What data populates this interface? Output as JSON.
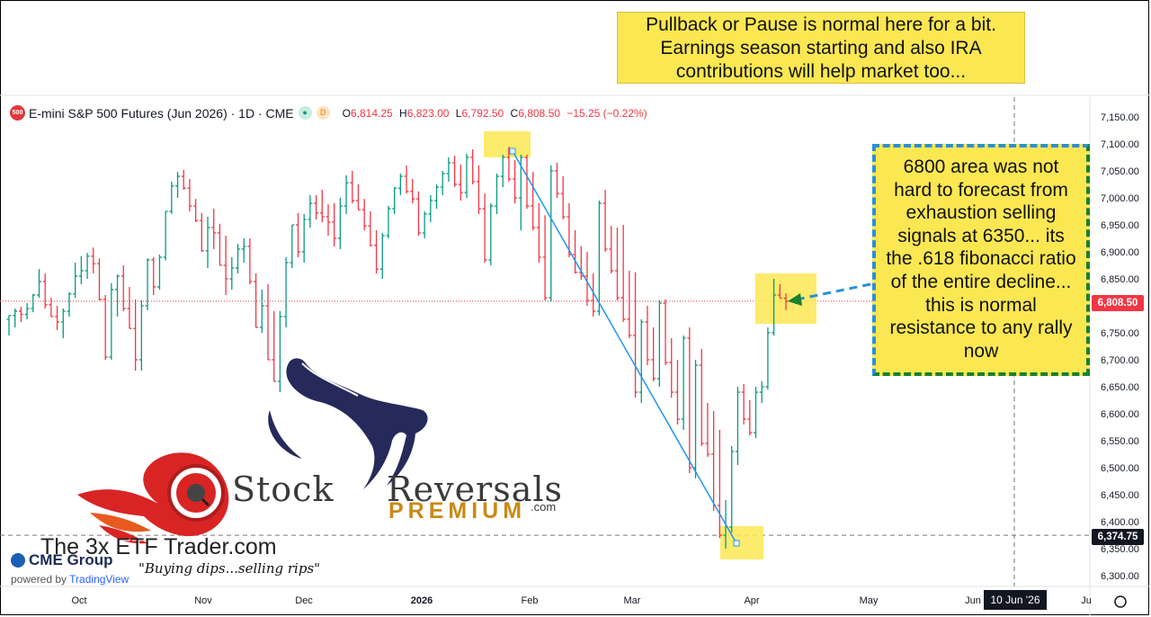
{
  "header": {
    "badge": "500",
    "symbol": "E-mini S&P 500 Futures (Jun 2026) · 1D · CME",
    "open_label": "O",
    "open": "6,814.25",
    "high_label": "H",
    "high": "6,823.00",
    "low_label": "L",
    "low": "6,792.50",
    "close_label": "C",
    "close": "6,808.50",
    "change": "−15.25 (−0.22%)"
  },
  "annotations": {
    "top_note": "Pullback or Pause is normal here for a bit. Earnings season starting and also IRA contributions will help market too...",
    "right_note": "6800 area was not hard to forecast from exhaustion selling signals at 6350... its the .618 fibonacci ratio of the entire decline... this is normal resistance to any rally now"
  },
  "price_tags": {
    "current": "6,808.50",
    "low_line": "6,374.75",
    "date_marker": "10 Jun '26"
  },
  "branding": {
    "logo_word1": "Stock",
    "logo_word2": "Reversals",
    "logo_sub": "PREMIUM",
    "logo_com": ".com",
    "trader": "The 3x ETF Trader.com",
    "slogan": "\"Buying dips...selling rips\"",
    "cme": "CME Group",
    "powered": "powered by",
    "tradingview": "TradingView"
  },
  "colors": {
    "up": "#089981",
    "down": "#f23645",
    "line": "#2196f3",
    "highlight": "#fbe752"
  },
  "chart_data": {
    "type": "ohlc",
    "y_axis_ticks": [
      "7,150.00",
      "7,100.00",
      "7,050.00",
      "7,000.00",
      "6,950.00",
      "6,900.00",
      "6,850.00",
      "6,800.00",
      "6,750.00",
      "6,700.00",
      "6,650.00",
      "6,600.00",
      "6,550.00",
      "6,500.00",
      "6,450.00",
      "6,400.00",
      "6,350.00",
      "6,300.00"
    ],
    "y_tick_values": [
      7150,
      7100,
      7050,
      7000,
      6950,
      6900,
      6850,
      6800,
      6750,
      6700,
      6650,
      6600,
      6550,
      6500,
      6450,
      6400,
      6350,
      6300
    ],
    "x_axis_labels": [
      "Oct",
      "Nov",
      "Dec",
      "2026",
      "Feb",
      "Mar",
      "Apr",
      "May",
      "Jun",
      "Ju"
    ],
    "ylim": [
      6280,
      7175
    ],
    "bars": [
      [
        6775,
        6770,
        6745
      ],
      [
        6782,
        6795,
        6760
      ],
      [
        6790,
        6798,
        6770
      ],
      [
        6784,
        6805,
        6775
      ],
      [
        6795,
        6822,
        6788
      ],
      [
        6820,
        6868,
        6815
      ],
      [
        6845,
        6860,
        6795
      ],
      [
        6802,
        6815,
        6780
      ],
      [
        6780,
        6800,
        6755
      ],
      [
        6770,
        6795,
        6740
      ],
      [
        6790,
        6825,
        6780
      ],
      [
        6822,
        6880,
        6815
      ],
      [
        6855,
        6892,
        6840
      ],
      [
        6865,
        6898,
        6850
      ],
      [
        6892,
        6908,
        6860
      ],
      [
        6878,
        6888,
        6810
      ],
      [
        6812,
        6820,
        6700
      ],
      [
        6705,
        6842,
        6700
      ],
      [
        6830,
        6858,
        6780
      ],
      [
        6855,
        6875,
        6790
      ],
      [
        6795,
        6835,
        6760
      ],
      [
        6758,
        6812,
        6680
      ],
      [
        6700,
        6810,
        6680
      ],
      [
        6800,
        6888,
        6792
      ],
      [
        6885,
        6890,
        6820
      ],
      [
        6835,
        6895,
        6830
      ],
      [
        6890,
        6965,
        6884
      ],
      [
        6975,
        7030,
        6970
      ],
      [
        7022,
        7048,
        7000
      ],
      [
        7040,
        7052,
        7015
      ],
      [
        7018,
        7035,
        6975
      ],
      [
        6985,
        6998,
        6955
      ],
      [
        6958,
        6972,
        6900
      ],
      [
        6902,
        6965,
        6870
      ],
      [
        6945,
        6980,
        6905
      ],
      [
        6935,
        6952,
        6880
      ],
      [
        6875,
        6930,
        6820
      ],
      [
        6850,
        6890,
        6830
      ],
      [
        6870,
        6915,
        6860
      ],
      [
        6905,
        6925,
        6880
      ],
      [
        6910,
        6925,
        6840
      ],
      [
        6845,
        6860,
        6760
      ],
      [
        6760,
        6830,
        6750
      ],
      [
        6800,
        6840,
        6700
      ],
      [
        6700,
        6790,
        6670
      ],
      [
        6660,
        6790,
        6640
      ],
      [
        6780,
        6890,
        6760
      ],
      [
        6880,
        6950,
        6870
      ],
      [
        6950,
        6972,
        6890
      ],
      [
        6900,
        6970,
        6880
      ],
      [
        6960,
        7005,
        6945
      ],
      [
        6990,
        7005,
        6960
      ],
      [
        6972,
        7015,
        6955
      ],
      [
        6965,
        6988,
        6930
      ],
      [
        6955,
        6990,
        6910
      ],
      [
        6925,
        7000,
        6905
      ],
      [
        6985,
        7042,
        6970
      ],
      [
        7028,
        7050,
        6990
      ],
      [
        6995,
        7025,
        6980
      ],
      [
        6978,
        6998,
        6940
      ],
      [
        6948,
        6975,
        6910
      ],
      [
        6912,
        6940,
        6860
      ],
      [
        6868,
        6935,
        6850
      ],
      [
        6930,
        6985,
        6925
      ],
      [
        6980,
        7020,
        6970
      ],
      [
        7018,
        7045,
        7005
      ],
      [
        7040,
        7060,
        7008
      ],
      [
        7012,
        7035,
        6990
      ],
      [
        6998,
        7012,
        6930
      ],
      [
        6935,
        6975,
        6925
      ],
      [
        6970,
        7005,
        6955
      ],
      [
        6995,
        7025,
        6980
      ],
      [
        7020,
        7050,
        7005
      ],
      [
        7045,
        7075,
        7030
      ],
      [
        7065,
        7078,
        7020
      ],
      [
        7025,
        7062,
        6995
      ],
      [
        7010,
        7082,
        7000
      ],
      [
        7075,
        7090,
        7025
      ],
      [
        7030,
        7060,
        6970
      ],
      [
        6980,
        7008,
        6880
      ],
      [
        6885,
        6990,
        6875
      ],
      [
        6985,
        7045,
        6970
      ],
      [
        7040,
        7080,
        7020
      ],
      [
        7075,
        7095,
        7030
      ],
      [
        7035,
        7070,
        6990
      ],
      [
        7000,
        7080,
        6940
      ],
      [
        7075,
        7080,
        6980
      ],
      [
        6985,
        7048,
        6940
      ],
      [
        6945,
        6990,
        6880
      ],
      [
        6890,
        6968,
        6810
      ],
      [
        6815,
        7060,
        6808
      ],
      [
        7050,
        7065,
        7000
      ],
      [
        7008,
        7040,
        6960
      ],
      [
        6965,
        6990,
        6890
      ],
      [
        6895,
        6940,
        6860
      ],
      [
        6862,
        6910,
        6848
      ],
      [
        6855,
        6900,
        6800
      ],
      [
        6810,
        6860,
        6780
      ],
      [
        6790,
        6995,
        6782
      ],
      [
        6990,
        7015,
        6900
      ],
      [
        6905,
        6948,
        6860
      ],
      [
        6865,
        6945,
        6810
      ],
      [
        6815,
        6950,
        6770
      ],
      [
        6775,
        6865,
        6740
      ],
      [
        6745,
        6862,
        6630
      ],
      [
        6640,
        6775,
        6620
      ],
      [
        6770,
        6800,
        6690
      ],
      [
        6700,
        6760,
        6660
      ],
      [
        6665,
        6810,
        6650
      ],
      [
        6805,
        6812,
        6690
      ],
      [
        6695,
        6740,
        6630
      ],
      [
        6640,
        6700,
        6580
      ],
      [
        6590,
        6745,
        6570
      ],
      [
        6740,
        6760,
        6490
      ],
      [
        6500,
        6700,
        6480
      ],
      [
        6690,
        6720,
        6540
      ],
      [
        6545,
        6620,
        6520
      ],
      [
        6525,
        6605,
        6420
      ],
      [
        6430,
        6570,
        6370
      ],
      [
        6375,
        6440,
        6350
      ],
      [
        6390,
        6540,
        6380
      ],
      [
        6530,
        6650,
        6505
      ],
      [
        6640,
        6655,
        6580
      ],
      [
        6590,
        6625,
        6560
      ],
      [
        6565,
        6650,
        6555
      ],
      [
        6640,
        6660,
        6620
      ],
      [
        6650,
        6760,
        6645
      ],
      [
        6750,
        6850,
        6745
      ],
      [
        6820,
        6840,
        6815
      ],
      [
        6814,
        6823,
        6792
      ]
    ],
    "trendline": [
      [
        7088,
        "late Jan"
      ],
      [
        6360,
        "late Mar"
      ]
    ]
  }
}
